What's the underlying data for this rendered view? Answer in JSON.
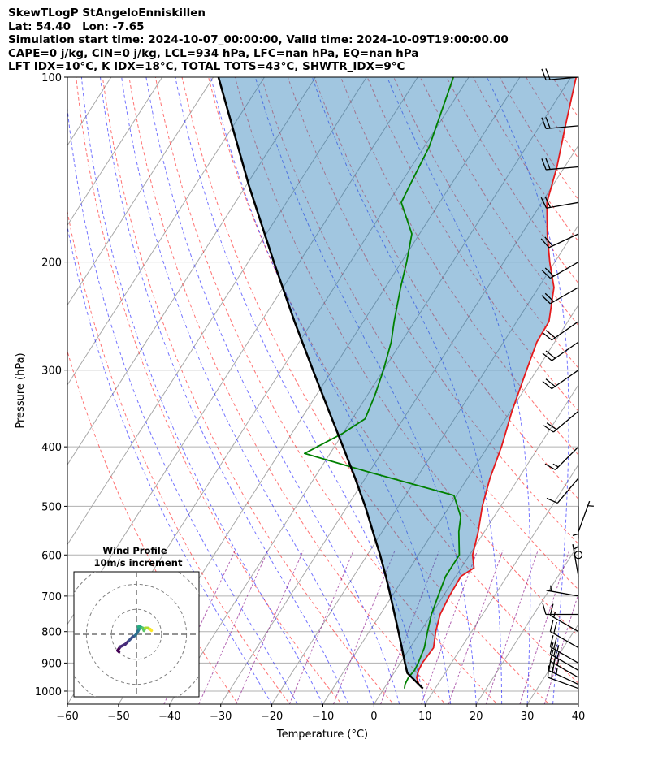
{
  "header": {
    "line1": "SkewTLogP StAngeloEnniskillen",
    "line2": "Lat: 54.40   Lon: -7.65",
    "line3": "Simulation start time: 2024-10-07_00:00:00, Valid time: 2024-10-09T19:00:00.00",
    "line4": "CAPE=0 j/kg, CIN=0 j/kg, LCL=934 hPa, LFC=nan hPa, EQ=nan hPa",
    "line5": "LFT IDX=10°C, K IDX=18°C, TOTAL TOTS=43°C, SHWTR_IDX=9°C"
  },
  "chart_data": {
    "type": "skewt-logp",
    "xlabel": "Temperature (°C)",
    "ylabel": "Pressure (hPa)",
    "xlim": [
      -60,
      40
    ],
    "ylim": [
      1050,
      100
    ],
    "x_ticks": [
      -60,
      -50,
      -40,
      -30,
      -20,
      -10,
      0,
      10,
      20,
      30,
      40
    ],
    "x_tick_labels": [
      "−60",
      "−50",
      "−40",
      "−30",
      "−20",
      "−10",
      "0",
      "10",
      "20",
      "30",
      "40"
    ],
    "y_ticks": [
      1000,
      900,
      800,
      700,
      600,
      500,
      400,
      300,
      200,
      100
    ],
    "y_tick_labels": [
      "1000",
      "900",
      "800",
      "700",
      "600",
      "500",
      "400",
      "300",
      "200",
      "100"
    ],
    "colors": {
      "temperature": "#e41a1c",
      "dewpoint": "#008000",
      "parcel": "#000000",
      "cape_fill": "#1f77b4",
      "dry_adiabat": "#ff0000",
      "moist_adiabat": "#0000ff",
      "mixing_ratio": "#800080",
      "isotherm": "#808080"
    },
    "temperature": [
      {
        "p": 990,
        "t": 7.6
      },
      {
        "p": 975,
        "t": 6.3
      },
      {
        "p": 950,
        "t": 5.0
      },
      {
        "p": 925,
        "t": 4.5
      },
      {
        "p": 900,
        "t": 4.3
      },
      {
        "p": 850,
        "t": 4.6
      },
      {
        "p": 800,
        "t": 3.0
      },
      {
        "p": 750,
        "t": 1.7
      },
      {
        "p": 700,
        "t": 1.2
      },
      {
        "p": 650,
        "t": 1.0
      },
      {
        "p": 630,
        "t": 2.5
      },
      {
        "p": 600,
        "t": 0.6
      },
      {
        "p": 550,
        "t": -1.2
      },
      {
        "p": 500,
        "t": -3.6
      },
      {
        "p": 450,
        "t": -5.6
      },
      {
        "p": 400,
        "t": -7.3
      },
      {
        "p": 350,
        "t": -9.7
      },
      {
        "p": 300,
        "t": -12.0
      },
      {
        "p": 270,
        "t": -13.5
      },
      {
        "p": 250,
        "t": -13.7
      },
      {
        "p": 220,
        "t": -17.0
      },
      {
        "p": 200,
        "t": -21.0
      },
      {
        "p": 180,
        "t": -25.0
      },
      {
        "p": 160,
        "t": -29.0
      },
      {
        "p": 140,
        "t": -31.5
      },
      {
        "p": 120,
        "t": -35.0
      },
      {
        "p": 100,
        "t": -39.0
      }
    ],
    "dewpoint": [
      {
        "p": 990,
        "t": 4.0
      },
      {
        "p": 975,
        "t": 3.6
      },
      {
        "p": 950,
        "t": 3.4
      },
      {
        "p": 925,
        "t": 3.7
      },
      {
        "p": 900,
        "t": 3.5
      },
      {
        "p": 850,
        "t": 2.8
      },
      {
        "p": 800,
        "t": 1.4
      },
      {
        "p": 750,
        "t": 0.0
      },
      {
        "p": 700,
        "t": -1.0
      },
      {
        "p": 650,
        "t": -2.0
      },
      {
        "p": 600,
        "t": -2.0
      },
      {
        "p": 550,
        "t": -5.0
      },
      {
        "p": 520,
        "t": -6.5
      },
      {
        "p": 480,
        "t": -10.5
      },
      {
        "p": 440,
        "t": -30.0
      },
      {
        "p": 410,
        "t": -45.0
      },
      {
        "p": 380,
        "t": -40.0
      },
      {
        "p": 360,
        "t": -37.5
      },
      {
        "p": 330,
        "t": -38.5
      },
      {
        "p": 300,
        "t": -40.0
      },
      {
        "p": 270,
        "t": -42.0
      },
      {
        "p": 250,
        "t": -44.0
      },
      {
        "p": 220,
        "t": -47.0
      },
      {
        "p": 200,
        "t": -49.0
      },
      {
        "p": 180,
        "t": -51.5
      },
      {
        "p": 160,
        "t": -57.5
      },
      {
        "p": 150,
        "t": -58.0
      },
      {
        "p": 130,
        "t": -59.0
      },
      {
        "p": 100,
        "t": -63.0
      }
    ],
    "parcel": [
      {
        "p": 990,
        "t": 7.6
      },
      {
        "p": 934,
        "t": 2.6
      },
      {
        "p": 900,
        "t": 0.9
      },
      {
        "p": 850,
        "t": -1.6
      },
      {
        "p": 800,
        "t": -4.3
      },
      {
        "p": 750,
        "t": -7.2
      },
      {
        "p": 700,
        "t": -10.3
      },
      {
        "p": 650,
        "t": -13.7
      },
      {
        "p": 600,
        "t": -17.5
      },
      {
        "p": 550,
        "t": -21.8
      },
      {
        "p": 500,
        "t": -26.5
      },
      {
        "p": 450,
        "t": -32.0
      },
      {
        "p": 400,
        "t": -38.3
      },
      {
        "p": 350,
        "t": -45.5
      },
      {
        "p": 300,
        "t": -53.8
      },
      {
        "p": 250,
        "t": -63.5
      },
      {
        "p": 200,
        "t": -75.0
      },
      {
        "p": 150,
        "t": -89.5
      },
      {
        "p": 100,
        "t": -109.0
      }
    ],
    "wind_barbs": [
      {
        "p": 990,
        "speed_kt": 20,
        "dir_deg": 290
      },
      {
        "p": 975,
        "speed_kt": 25,
        "dir_deg": 295
      },
      {
        "p": 950,
        "speed_kt": 25,
        "dir_deg": 300
      },
      {
        "p": 925,
        "speed_kt": 25,
        "dir_deg": 300
      },
      {
        "p": 900,
        "speed_kt": 25,
        "dir_deg": 300
      },
      {
        "p": 850,
        "speed_kt": 20,
        "dir_deg": 300
      },
      {
        "p": 800,
        "speed_kt": 15,
        "dir_deg": 300
      },
      {
        "p": 750,
        "speed_kt": 10,
        "dir_deg": 270
      },
      {
        "p": 700,
        "speed_kt": 5,
        "dir_deg": 280
      },
      {
        "p": 650,
        "speed_kt": 5,
        "dir_deg": 350
      },
      {
        "p": 600,
        "speed_kt": 0,
        "dir_deg": 0
      },
      {
        "p": 550,
        "speed_kt": 5,
        "dir_deg": 20
      },
      {
        "p": 500,
        "speed_kt": 5,
        "dir_deg": 180
      },
      {
        "p": 450,
        "speed_kt": 10,
        "dir_deg": 220
      },
      {
        "p": 400,
        "speed_kt": 15,
        "dir_deg": 225
      },
      {
        "p": 350,
        "speed_kt": 20,
        "dir_deg": 230
      },
      {
        "p": 300,
        "speed_kt": 20,
        "dir_deg": 235
      },
      {
        "p": 270,
        "speed_kt": 20,
        "dir_deg": 235
      },
      {
        "p": 250,
        "speed_kt": 20,
        "dir_deg": 235
      },
      {
        "p": 220,
        "speed_kt": 20,
        "dir_deg": 240
      },
      {
        "p": 200,
        "speed_kt": 20,
        "dir_deg": 240
      },
      {
        "p": 180,
        "speed_kt": 20,
        "dir_deg": 245
      },
      {
        "p": 160,
        "speed_kt": 20,
        "dir_deg": 260
      },
      {
        "p": 140,
        "speed_kt": 20,
        "dir_deg": 265
      },
      {
        "p": 120,
        "speed_kt": 20,
        "dir_deg": 265
      },
      {
        "p": 100,
        "speed_kt": 20,
        "dir_deg": 265
      }
    ],
    "hodograph": {
      "title": "Wind Profile",
      "subtitle": "10m/s increment",
      "ring_increment_ms": 10,
      "rings": 3,
      "range_ms": 25,
      "points": [
        {
          "u": -7.0,
          "v": -7.0
        },
        {
          "u": -7.5,
          "v": -6.5
        },
        {
          "u": -6.5,
          "v": -5.0
        },
        {
          "u": -4.5,
          "v": -4.0
        },
        {
          "u": -3.0,
          "v": -2.5
        },
        {
          "u": -1.5,
          "v": -1.0
        },
        {
          "u": -0.5,
          "v": -0.5
        },
        {
          "u": 0.5,
          "v": 1.0
        },
        {
          "u": 1.0,
          "v": 2.0
        },
        {
          "u": 0.8,
          "v": 3.0
        },
        {
          "u": 1.5,
          "v": 3.0
        },
        {
          "u": 2.5,
          "v": 2.5
        },
        {
          "u": 3.0,
          "v": 1.5
        },
        {
          "u": 3.5,
          "v": 2.5
        },
        {
          "u": 4.5,
          "v": 2.5
        },
        {
          "u": 5.5,
          "v": 2.0
        },
        {
          "u": 6.0,
          "v": 1.5
        }
      ]
    }
  }
}
